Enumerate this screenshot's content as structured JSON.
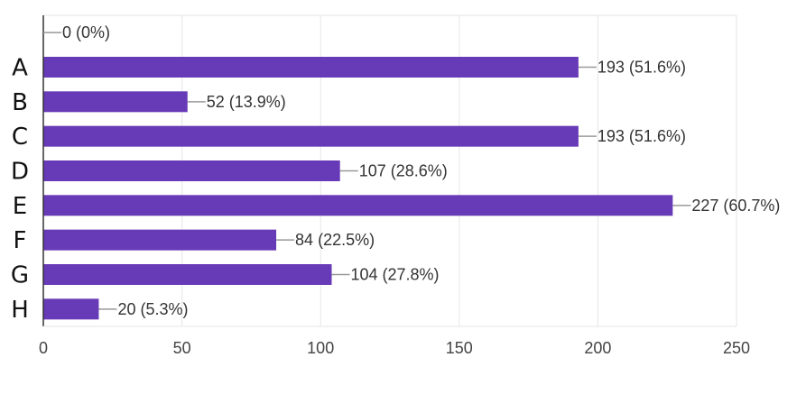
{
  "chart_data": {
    "type": "bar",
    "orientation": "horizontal",
    "categories": [
      "",
      "A",
      "B",
      "C",
      "D",
      "E",
      "F",
      "G",
      "H"
    ],
    "values": [
      0,
      193,
      52,
      193,
      107,
      227,
      84,
      104,
      20
    ],
    "data_labels": [
      "0 (0%)",
      "193 (51.6%)",
      "52 (13.9%)",
      "193 (51.6%)",
      "107 (28.6%)",
      "227 (60.7%)",
      "84 (22.5%)",
      "104 (27.8%)",
      "20 (5.3%)"
    ],
    "xlim": [
      0,
      250
    ],
    "xticks": [
      0,
      50,
      100,
      150,
      200,
      250
    ],
    "xtick_labels": [
      "0",
      "50",
      "100",
      "150",
      "200",
      "250"
    ],
    "grid": true,
    "colors": {
      "bar": "#673AB7",
      "grid": "#e6e6e6",
      "axis": "#333333",
      "leader": "#999999"
    }
  }
}
